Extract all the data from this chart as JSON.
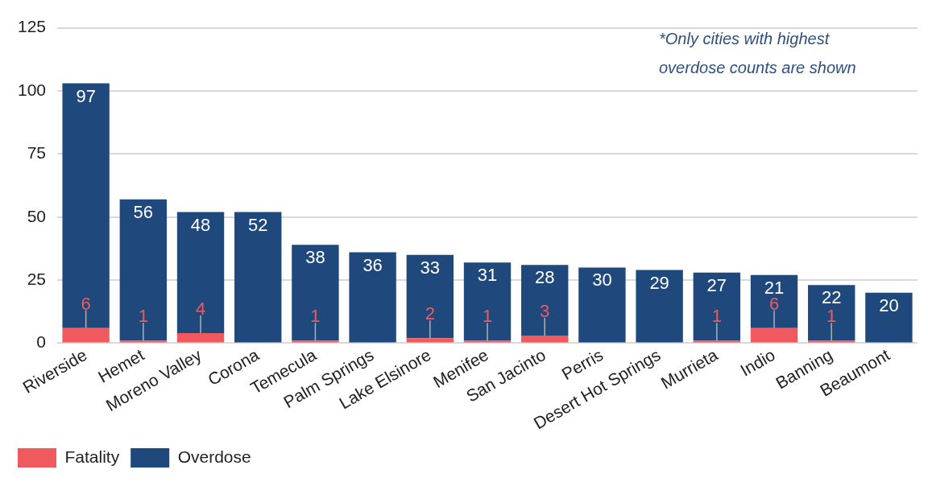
{
  "chart_data": {
    "type": "bar",
    "stacked": true,
    "categories": [
      "Riverside",
      "Hemet",
      "Moreno Valley",
      "Corona",
      "Temecula",
      "Palm Springs",
      "Lake Elsinore",
      "Menifee",
      "San Jacinto",
      "Perris",
      "Desert Hot Springs",
      "Murrieta",
      "Indio",
      "Banning",
      "Beaumont"
    ],
    "series": [
      {
        "name": "Fatality",
        "color": "#f05a5f",
        "values": [
          6,
          1,
          4,
          0,
          1,
          0,
          2,
          1,
          3,
          0,
          0,
          1,
          6,
          1,
          0
        ],
        "value_labels": [
          "6",
          "1",
          "4",
          null,
          "1",
          null,
          "2",
          "1",
          "3",
          null,
          null,
          "1",
          "6",
          "1",
          null
        ]
      },
      {
        "name": "Overdose",
        "color": "#1f497d",
        "values": [
          97,
          56,
          48,
          52,
          38,
          36,
          33,
          31,
          28,
          30,
          29,
          27,
          21,
          22,
          20
        ],
        "value_labels": [
          "97",
          "56",
          "48",
          "52",
          "38",
          "36",
          "33",
          "31",
          "28",
          "30",
          "29",
          "27",
          "21",
          "22",
          "20"
        ]
      }
    ],
    "ylim": [
      0,
      125
    ],
    "yticks": [
      0,
      25,
      50,
      75,
      100,
      125
    ],
    "grid": "y",
    "legend": "bottom left",
    "annotations": [
      "*Only cities with highest overdose counts are shown"
    ]
  }
}
